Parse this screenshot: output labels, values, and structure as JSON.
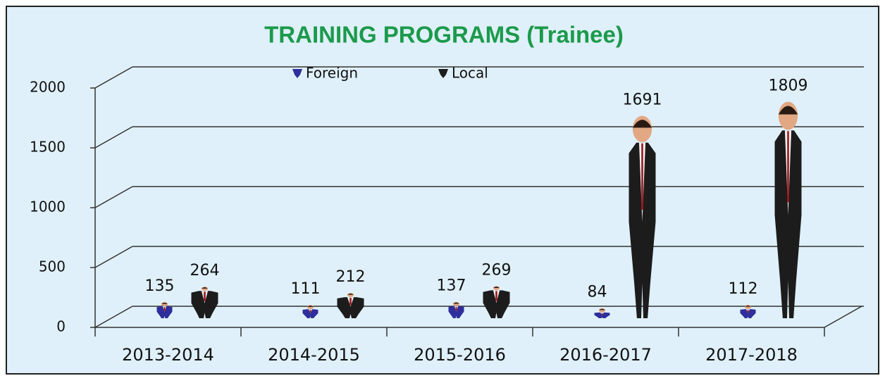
{
  "chart_data": {
    "type": "bar",
    "title": "TRAINING PROGRAMS (Trainee)",
    "categories": [
      "2013-2014",
      "2014-2015",
      "2015-2016",
      "2016-2017",
      "2017-2018"
    ],
    "series": [
      {
        "name": "Foreign",
        "color": "#2e2e9c",
        "values": [
          135,
          111,
          137,
          84,
          112
        ]
      },
      {
        "name": "Local",
        "color": "#1c1c1c",
        "values": [
          264,
          212,
          269,
          1691,
          1809
        ]
      }
    ],
    "ylim": [
      0,
      2000
    ],
    "yticks": [
      0,
      500,
      1000,
      1500,
      2000
    ],
    "grid": true
  }
}
